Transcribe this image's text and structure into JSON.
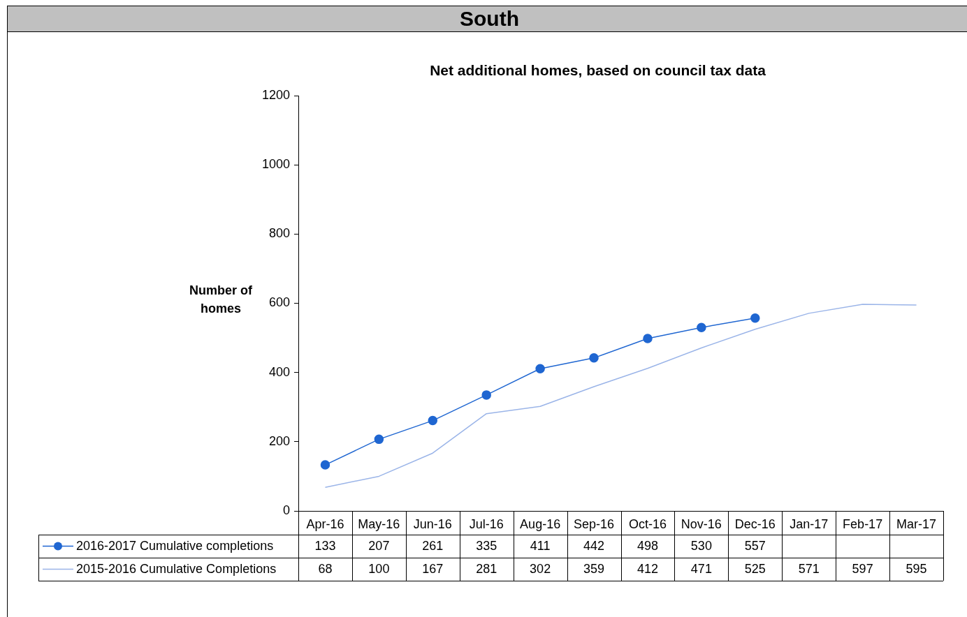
{
  "chart_data": {
    "type": "line",
    "title": "South",
    "subtitle": "Net additional homes, based on council tax data",
    "ylabel": "Number of homes",
    "categories": [
      "Apr-16",
      "May-16",
      "Jun-16",
      "Jul-16",
      "Aug-16",
      "Sep-16",
      "Oct-16",
      "Nov-16",
      "Dec-16",
      "Jan-17",
      "Feb-17",
      "Mar-17"
    ],
    "series": [
      {
        "name": "2016-2017 Cumulative completions",
        "color": "#1f66d1",
        "marker": "circle",
        "values": [
          133,
          207,
          261,
          335,
          411,
          442,
          498,
          530,
          557,
          null,
          null,
          null
        ]
      },
      {
        "name": "2015-2016 Cumulative Completions",
        "color": "#9ab4e8",
        "marker": "none",
        "values": [
          68,
          100,
          167,
          281,
          302,
          359,
          412,
          471,
          525,
          571,
          597,
          595
        ]
      }
    ],
    "ylim": [
      0,
      1200
    ],
    "yticks": [
      0,
      200,
      400,
      600,
      800,
      1000,
      1200
    ],
    "grid": false,
    "legend": "bottom",
    "data_labels": true,
    "line_style": "solid"
  }
}
